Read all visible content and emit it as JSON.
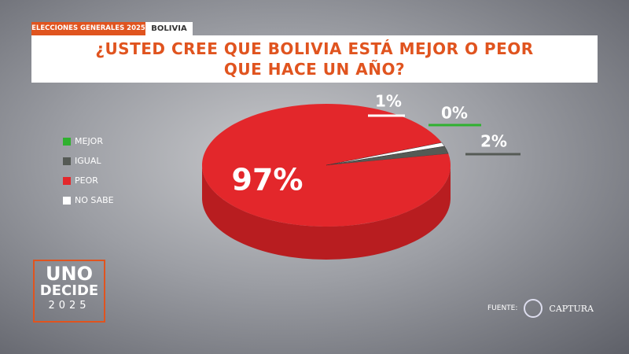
{
  "header": {
    "tag": "ELECCIONES GENERALES 2025",
    "country": "BOLIVIA"
  },
  "chart_data": {
    "type": "pie",
    "title": "¿USTED CREE QUE BOLIVIA ESTÁ MEJOR O PEOR QUE HACE UN AÑO?",
    "categories": [
      "MEJOR",
      "IGUAL",
      "PEOR",
      "NO SABE"
    ],
    "values": [
      0,
      2,
      97,
      1
    ],
    "value_labels": [
      "0%",
      "2%",
      "97%",
      "1%"
    ],
    "colors": [
      "#2fb12f",
      "#555a55",
      "#e3272b",
      "#ffffff"
    ],
    "legend": "left"
  },
  "branding": {
    "line1": "UNO",
    "line2": "DECIDE",
    "line3": "2025"
  },
  "source": {
    "label": "FUENTE:",
    "name": "CAPTURA"
  }
}
